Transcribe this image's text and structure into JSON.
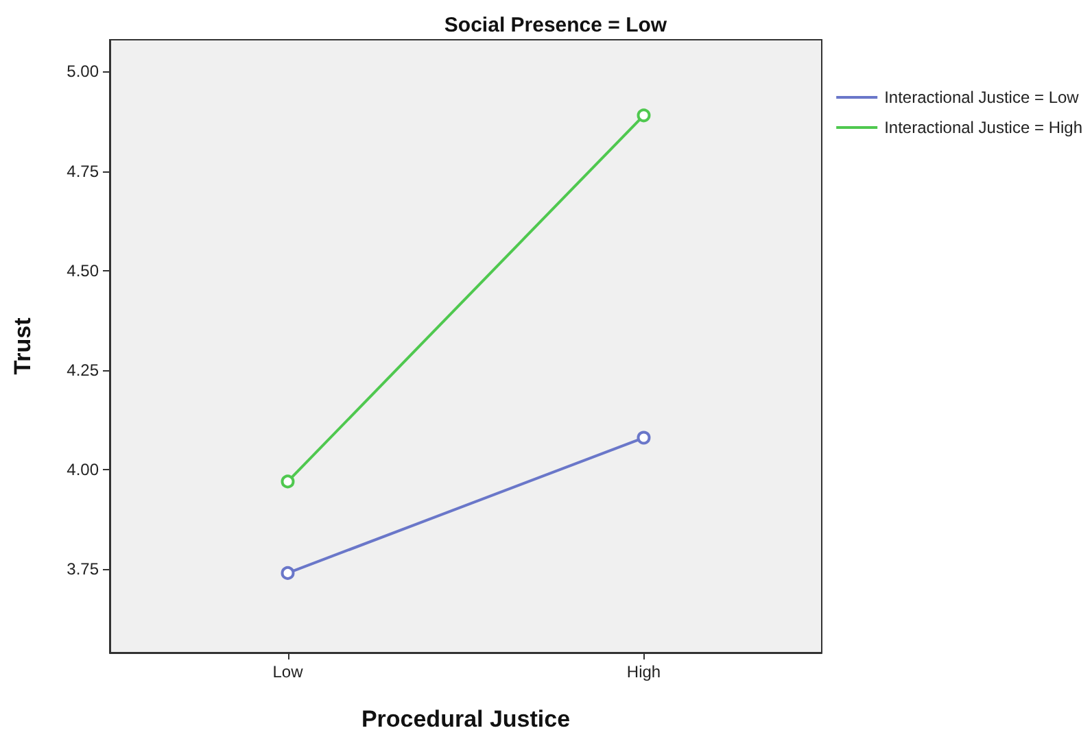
{
  "chart_data": {
    "type": "line",
    "title": "Social Presence = Low",
    "xlabel": "Procedural Justice",
    "ylabel": "Trust",
    "categories": [
      "Low",
      "High"
    ],
    "series": [
      {
        "name": "Interactional Justice = Low",
        "color": "#6a77c9",
        "values": [
          3.74,
          4.08
        ]
      },
      {
        "name": "Interactional Justice = High",
        "color": "#4fc84f",
        "values": [
          3.97,
          4.89
        ]
      }
    ],
    "ylim": [
      3.54,
      5.08
    ],
    "yticks": [
      {
        "value": 3.75,
        "label": "3.75"
      },
      {
        "value": 4,
        "label": "4.00"
      },
      {
        "value": 4.25,
        "label": "4.25"
      },
      {
        "value": 4.5,
        "label": "4.50"
      },
      {
        "value": 4.75,
        "label": "4.75"
      },
      {
        "value": 5,
        "label": "5.00"
      }
    ],
    "grid": false,
    "legend": "top right",
    "marker": "circle",
    "line_style": "solid"
  }
}
